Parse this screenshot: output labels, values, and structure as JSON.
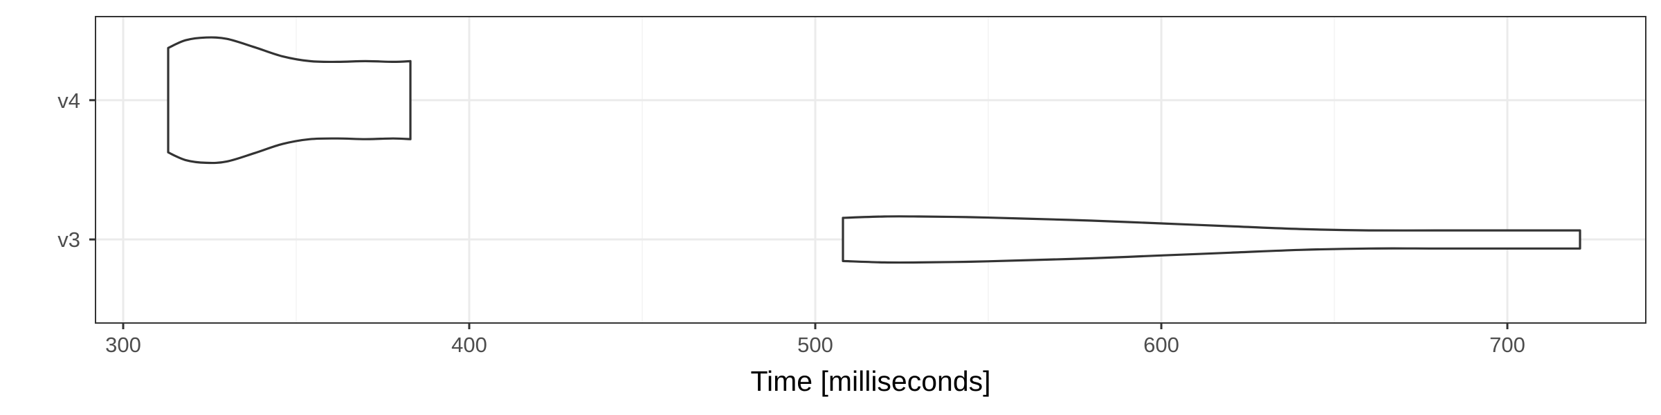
{
  "chart_data": {
    "type": "violin",
    "orientation": "horizontal",
    "title": "",
    "xlabel": "Time [milliseconds]",
    "ylabel": "",
    "xlim": [
      292,
      740
    ],
    "x_ticks": [
      300,
      400,
      500,
      600,
      700
    ],
    "x_tick_labels": [
      "300",
      "400",
      "500",
      "600",
      "700"
    ],
    "categories": [
      "v3",
      "v4"
    ],
    "grid": true,
    "legend": "none",
    "colors": {
      "outline": "#333333",
      "fill": "#ffffff",
      "grid_major": "#ebebeb",
      "grid_minor": "#f3f3f3",
      "panel_border": "#333333",
      "tick_label": "#4d4d4d"
    },
    "series": [
      {
        "category": "v4",
        "min": 313,
        "max": 383,
        "density_x": [
          313,
          318,
          324,
          330,
          338,
          346,
          354,
          362,
          370,
          378,
          383
        ],
        "density": [
          0.75,
          0.86,
          0.9,
          0.88,
          0.76,
          0.63,
          0.56,
          0.55,
          0.56,
          0.55,
          0.56
        ]
      },
      {
        "category": "v3",
        "min": 508,
        "max": 721,
        "density_x": [
          508,
          520,
          530,
          545,
          560,
          580,
          600,
          620,
          640,
          660,
          680,
          700,
          721
        ],
        "density": [
          0.31,
          0.33,
          0.33,
          0.32,
          0.3,
          0.27,
          0.23,
          0.19,
          0.15,
          0.13,
          0.13,
          0.13,
          0.13
        ]
      }
    ]
  }
}
